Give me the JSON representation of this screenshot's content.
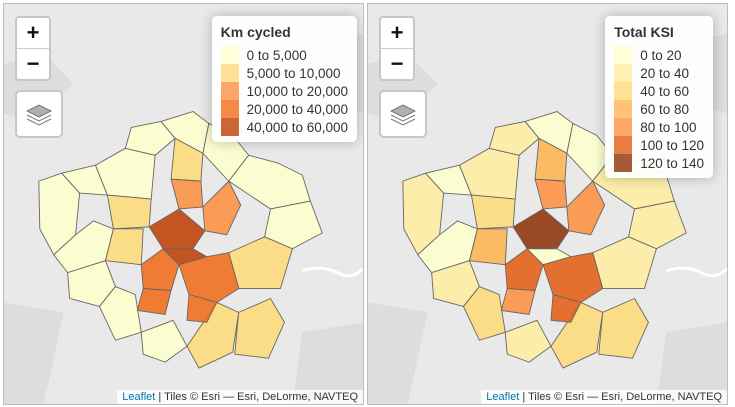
{
  "zoom": {
    "in": "+",
    "out": "−"
  },
  "attribution": {
    "link": "Leaflet",
    "rest": " | Tiles © Esri — Esri, DeLorme, NAVTEQ"
  },
  "maps": [
    {
      "legend_title": "Km cycled",
      "legend": [
        {
          "label": "0 to 5,000",
          "color": "#ffffcc"
        },
        {
          "label": "5,000 to 10,000",
          "color": "#fed976"
        },
        {
          "label": "10,000 to 20,000",
          "color": "#fd8d3c"
        },
        {
          "label": "20,000 to 40,000",
          "color": "#f16913"
        },
        {
          "label": "40,000 to 60,000",
          "color": "#bd3b00"
        }
      ]
    },
    {
      "legend_title": "Total KSI",
      "legend": [
        {
          "label": "0 to 20",
          "color": "#ffffcc"
        },
        {
          "label": "20 to 40",
          "color": "#ffeda0"
        },
        {
          "label": "40 to 60",
          "color": "#fed976"
        },
        {
          "label": "60 to 80",
          "color": "#feb24c"
        },
        {
          "label": "80 to 100",
          "color": "#fd8d3c"
        },
        {
          "label": "100 to 120",
          "color": "#e35a0f"
        },
        {
          "label": "120 to 140",
          "color": "#8c2d04"
        }
      ]
    }
  ],
  "district_classes": {
    "left": [
      0,
      0,
      0,
      0,
      0,
      0,
      0,
      0,
      0,
      0,
      0,
      0,
      1,
      1,
      1,
      1,
      1,
      1,
      2,
      2,
      3,
      3,
      3,
      3,
      4,
      4
    ],
    "right": [
      1,
      0,
      1,
      1,
      0,
      0,
      1,
      1,
      0,
      1,
      2,
      1,
      2,
      2,
      1,
      2,
      3,
      3,
      4,
      4,
      5,
      4,
      5,
      5,
      6,
      0
    ]
  },
  "icons": {
    "layers": "layers-icon"
  }
}
